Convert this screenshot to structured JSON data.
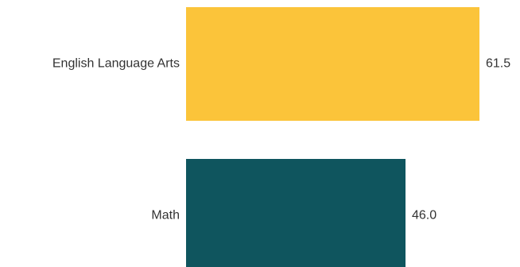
{
  "chart_data": {
    "type": "bar",
    "orientation": "horizontal",
    "categories": [
      "English Language Arts",
      "Math"
    ],
    "values": [
      61.5,
      46.0
    ],
    "value_labels": [
      "61.5",
      "46.0"
    ],
    "colors": [
      "#FBC43A",
      "#0F555E"
    ],
    "xlim": [
      0,
      100
    ],
    "grid": false,
    "legend": "none",
    "title": "",
    "xlabel": "",
    "ylabel": ""
  }
}
